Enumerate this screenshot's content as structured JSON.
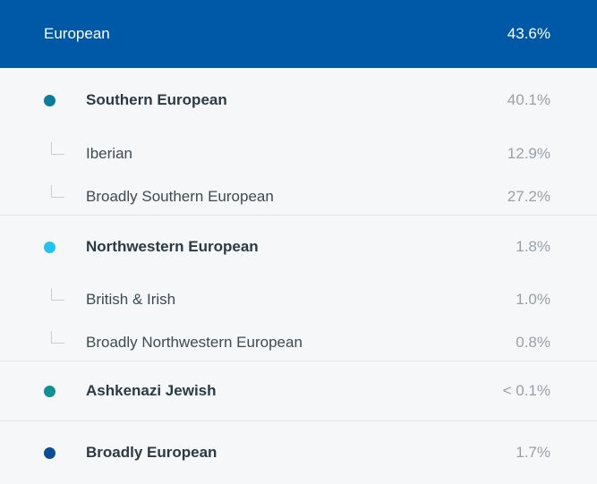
{
  "header": {
    "label": "European",
    "value": "43.6%"
  },
  "groups": [
    {
      "label": "Southern European",
      "value": "40.1%",
      "dot_color": "#0b7d9c",
      "children": [
        {
          "label": "Iberian",
          "value": "12.9%"
        },
        {
          "label": "Broadly Southern European",
          "value": "27.2%"
        }
      ]
    },
    {
      "label": "Northwestern European",
      "value": "1.8%",
      "dot_color": "#21c4ef",
      "children": [
        {
          "label": "British & Irish",
          "value": "1.0%"
        },
        {
          "label": "Broadly Northwestern European",
          "value": "0.8%"
        }
      ]
    },
    {
      "label": "Ashkenazi Jewish",
      "value": "< 0.1%",
      "dot_color": "#0f9196",
      "children": []
    },
    {
      "label": "Broadly European",
      "value": "1.7%",
      "dot_color": "#0a4f95",
      "children": []
    }
  ]
}
